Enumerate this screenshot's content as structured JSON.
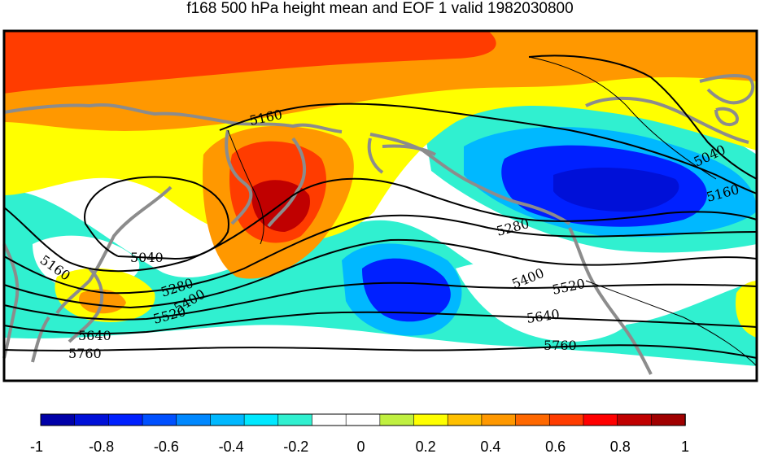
{
  "title": "f168 500 hPa height mean and EOF 1 valid 1982030800",
  "contour_labels": [
    {
      "id": "lbl-5160-a",
      "text": "5160"
    },
    {
      "id": "lbl-5040-a",
      "text": "5040"
    },
    {
      "id": "lbl-5160-b",
      "text": "5160"
    },
    {
      "id": "lbl-5280-a",
      "text": "5280"
    },
    {
      "id": "lbl-5400-a",
      "text": "5400"
    },
    {
      "id": "lbl-5520-a",
      "text": "5520"
    },
    {
      "id": "lbl-5640-a",
      "text": "5640"
    },
    {
      "id": "lbl-5760-a",
      "text": "5760"
    },
    {
      "id": "lbl-5040-b",
      "text": "5040"
    },
    {
      "id": "lbl-5160-c",
      "text": "5160"
    },
    {
      "id": "lbl-5280-b",
      "text": "5280"
    },
    {
      "id": "lbl-5400-b",
      "text": "5400"
    },
    {
      "id": "lbl-5520-b",
      "text": "5520"
    },
    {
      "id": "lbl-5640-b",
      "text": "5640"
    },
    {
      "id": "lbl-5760-b",
      "text": "5760"
    }
  ],
  "colorbar": {
    "colors": [
      "#0000a8",
      "#0010d8",
      "#0020ff",
      "#0050ff",
      "#0088ff",
      "#00b8ff",
      "#00e8ff",
      "#30f0d0",
      "#ffffff",
      "#ffffff",
      "#c0f040",
      "#ffff00",
      "#ffc000",
      "#ff9800",
      "#ff6800",
      "#ff3c00",
      "#ff0000",
      "#c00000",
      "#a00000"
    ],
    "ticks": [
      "-1",
      "-0.8",
      "-0.6",
      "-0.4",
      "-0.2",
      "0",
      "0.2",
      "0.4",
      "0.6",
      "0.8",
      "1"
    ]
  },
  "colors": {
    "coastline": "#8c8c8c",
    "contour": "#000000",
    "frame": "#000000"
  }
}
